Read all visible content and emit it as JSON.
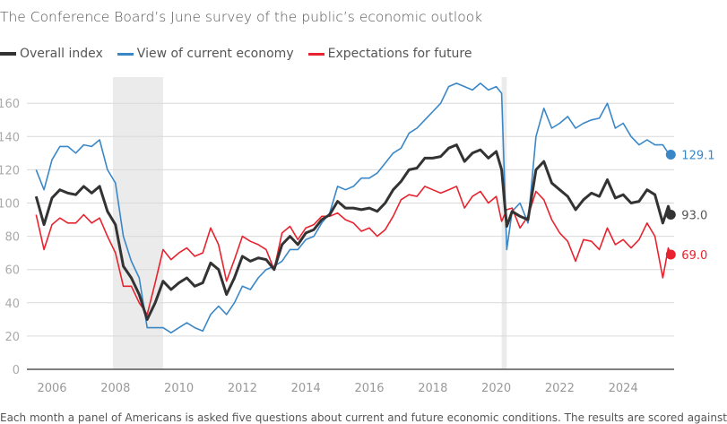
{
  "chart_data": {
    "type": "line",
    "title": "The Conference Board’s June survey of the public’s economic outlook",
    "xlabel": "",
    "ylabel": "",
    "xlim": [
      2005.5,
      2025.6
    ],
    "ylim": [
      0,
      176
    ],
    "yticks": [
      0,
      20,
      40,
      60,
      80,
      100,
      120,
      140,
      160
    ],
    "xticks": [
      "2006",
      "2008",
      "2010",
      "2012",
      "2014",
      "2016",
      "2018",
      "2020",
      "2022",
      "2024"
    ],
    "grid": true,
    "legend_position": "top-left",
    "shaded_periods": [
      [
        2007.92,
        2009.5
      ],
      [
        2020.17,
        2020.33
      ]
    ],
    "x": [
      2005.5,
      2005.75,
      2006.0,
      2006.25,
      2006.5,
      2006.75,
      2007.0,
      2007.25,
      2007.5,
      2007.75,
      2008.0,
      2008.25,
      2008.5,
      2008.75,
      2009.0,
      2009.25,
      2009.5,
      2009.75,
      2010.0,
      2010.25,
      2010.5,
      2010.75,
      2011.0,
      2011.25,
      2011.5,
      2011.75,
      2012.0,
      2012.25,
      2012.5,
      2012.75,
      2013.0,
      2013.25,
      2013.5,
      2013.75,
      2014.0,
      2014.25,
      2014.5,
      2014.75,
      2015.0,
      2015.25,
      2015.5,
      2015.75,
      2016.0,
      2016.25,
      2016.5,
      2016.75,
      2017.0,
      2017.25,
      2017.5,
      2017.75,
      2018.0,
      2018.25,
      2018.5,
      2018.75,
      2019.0,
      2019.25,
      2019.5,
      2019.75,
      2020.0,
      2020.17,
      2020.33,
      2020.5,
      2020.75,
      2021.0,
      2021.25,
      2021.5,
      2021.75,
      2022.0,
      2022.25,
      2022.5,
      2022.75,
      2023.0,
      2023.25,
      2023.5,
      2023.75,
      2024.0,
      2024.25,
      2024.5,
      2024.75,
      2025.0,
      2025.25,
      2025.42,
      2025.5
    ],
    "series": [
      {
        "name": "Overall index",
        "color": "#333333",
        "end_label": "93.0",
        "values": [
          104,
          87,
          103,
          108,
          106,
          105,
          110,
          106,
          110,
          95,
          87,
          62,
          55,
          45,
          30,
          40,
          53,
          48,
          52,
          55,
          50,
          52,
          64,
          60,
          45,
          55,
          68,
          65,
          67,
          66,
          60,
          75,
          80,
          75,
          82,
          84,
          90,
          93,
          101,
          97,
          97,
          96,
          97,
          95,
          100,
          108,
          113,
          120,
          121,
          127,
          127,
          128,
          133,
          135,
          125,
          130,
          132,
          127,
          131,
          120,
          86,
          95,
          92,
          90,
          120,
          125,
          112,
          108,
          104,
          96,
          102,
          106,
          104,
          114,
          103,
          105,
          100,
          101,
          108,
          105,
          88,
          98,
          93
        ]
      },
      {
        "name": "View of current economy",
        "color": "#3a87c8",
        "end_label": "129.1",
        "values": [
          120,
          108,
          126,
          134,
          134,
          130,
          135,
          134,
          138,
          120,
          112,
          80,
          65,
          55,
          25,
          25,
          25,
          22,
          25,
          28,
          25,
          23,
          33,
          38,
          33,
          40,
          50,
          48,
          55,
          60,
          62,
          65,
          72,
          72,
          78,
          80,
          88,
          94,
          110,
          108,
          110,
          115,
          115,
          118,
          124,
          130,
          133,
          142,
          145,
          150,
          155,
          160,
          170,
          172,
          170,
          168,
          172,
          168,
          170,
          166,
          72,
          95,
          100,
          88,
          140,
          157,
          145,
          148,
          152,
          145,
          148,
          150,
          151,
          160,
          145,
          148,
          140,
          135,
          138,
          135,
          135,
          130,
          129.1
        ]
      },
      {
        "name": "Expectations for future",
        "color": "#e8232f",
        "end_label": "69.0",
        "values": [
          93,
          72,
          87,
          91,
          88,
          88,
          93,
          88,
          91,
          80,
          70,
          50,
          50,
          40,
          33,
          52,
          72,
          66,
          70,
          73,
          68,
          70,
          85,
          75,
          53,
          66,
          80,
          77,
          75,
          72,
          60,
          82,
          86,
          78,
          85,
          87,
          92,
          92,
          94,
          90,
          88,
          83,
          85,
          80,
          84,
          92,
          102,
          105,
          104,
          110,
          108,
          106,
          108,
          110,
          97,
          104,
          107,
          100,
          104,
          89,
          96,
          97,
          85,
          92,
          107,
          102,
          90,
          82,
          77,
          65,
          78,
          77,
          72,
          85,
          75,
          78,
          73,
          78,
          88,
          80,
          55,
          73,
          69
        ]
      }
    ]
  },
  "footnote": "Each month a panel of Americans is asked five questions about current and future economic conditions. The results are scored against"
}
